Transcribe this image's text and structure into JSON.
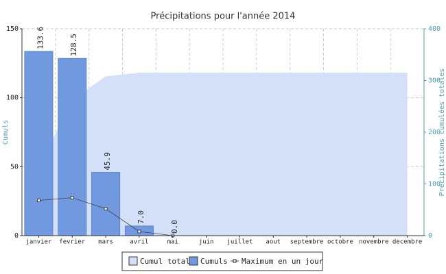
{
  "chart_data": {
    "type": "bar",
    "title": "Précipitations pour l'année 2014",
    "y_label": "Cumuls",
    "y2_label": "Précipitations cumulées totales",
    "categories": [
      "janvier",
      "fevrier",
      "mars",
      "avril",
      "mai",
      "juin",
      "juillet",
      "aout",
      "septembre",
      "octobre",
      "novembre",
      "decembre"
    ],
    "series": [
      {
        "name": "Cumul total",
        "type": "area",
        "axis": "y2",
        "color": "#d3e0f8",
        "values": [
          133.6,
          262.1,
          308.0,
          315.0,
          315.0,
          315.0,
          315.0,
          315.0,
          315.0,
          315.0,
          315.0,
          315.0
        ]
      },
      {
        "name": "Cumuls",
        "type": "bar",
        "color": "#7099e0",
        "values": [
          133.6,
          128.5,
          45.9,
          7.0,
          0.0,
          null,
          null,
          null,
          null,
          null,
          null,
          null
        ],
        "value_labels": [
          "133.6",
          "128.5",
          "45.9",
          "7.0",
          "0.0",
          null,
          null,
          null,
          null,
          null,
          null,
          null
        ]
      },
      {
        "name": "Maximum en un jour",
        "type": "line",
        "color": "#444444",
        "values": [
          25.5,
          27.5,
          19.5,
          3.0,
          0.0,
          null,
          null,
          null,
          null,
          null,
          null,
          null
        ]
      }
    ],
    "ylim": [
      0,
      150
    ],
    "yticks": [
      0,
      50,
      100,
      150
    ],
    "y2lim": [
      0,
      400
    ],
    "y2ticks": [
      0,
      100,
      200,
      300,
      400
    ],
    "grid": true
  }
}
